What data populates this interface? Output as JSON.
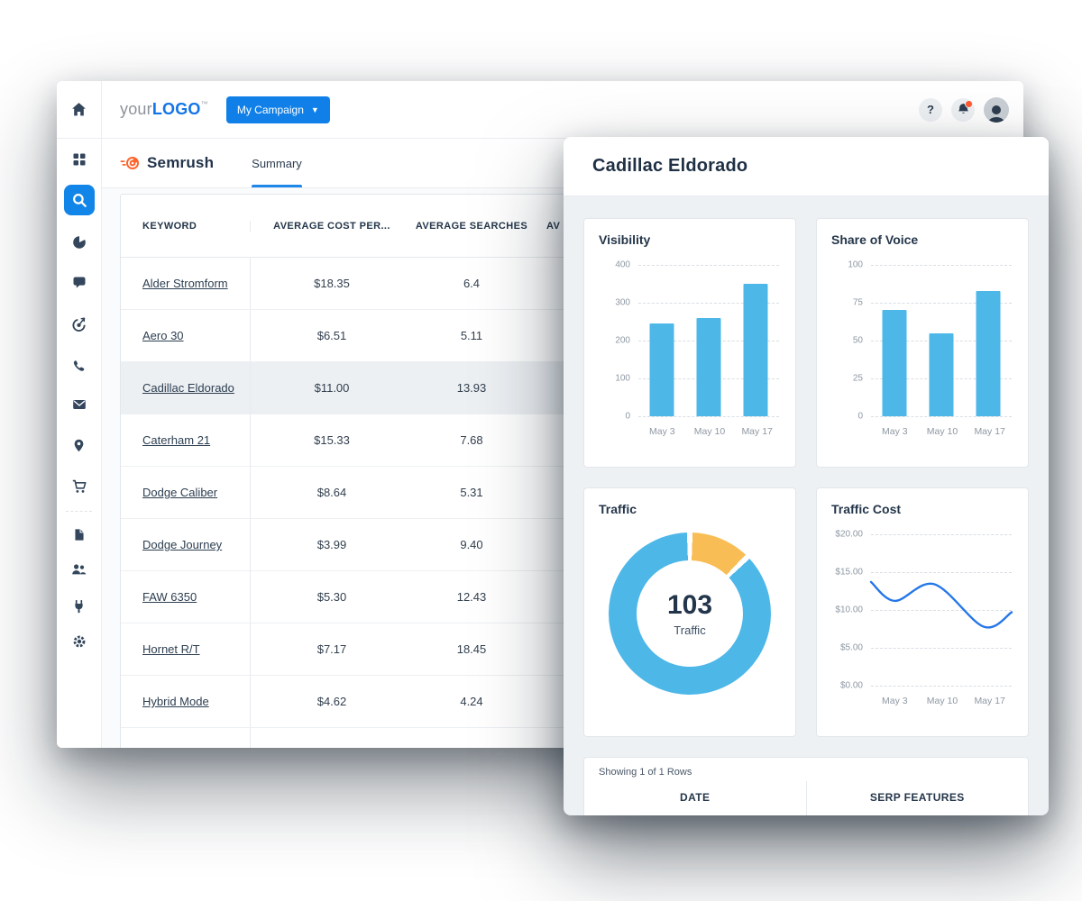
{
  "topbar": {
    "logo_prefix": "your",
    "logo_suffix": "LOGO",
    "logo_tm": "™",
    "campaign_button_label": "My Campaign",
    "help_label": "?"
  },
  "subheader": {
    "brand": "Semrush",
    "active_tab": "Summary"
  },
  "sidebar": {
    "items": [
      "home",
      "apps-grid",
      "search",
      "pie-chart",
      "chat",
      "target",
      "phone",
      "mail",
      "location",
      "cart",
      "document",
      "users",
      "integrations",
      "settings"
    ],
    "active_item": "search"
  },
  "table": {
    "columns": [
      "KEYWORD",
      "AVERAGE COST PER...",
      "AVERAGE SEARCHES",
      "AV"
    ],
    "rows": [
      {
        "keyword": "Alder Stromform",
        "cost": "$18.35",
        "searches": "6.4",
        "highlighted": false
      },
      {
        "keyword": "Aero 30",
        "cost": "$6.51",
        "searches": "5.11",
        "highlighted": false
      },
      {
        "keyword": "Cadillac Eldorado",
        "cost": "$11.00",
        "searches": "13.93",
        "highlighted": true
      },
      {
        "keyword": "Caterham 21",
        "cost": "$15.33",
        "searches": "7.68",
        "highlighted": false
      },
      {
        "keyword": "Dodge Caliber",
        "cost": "$8.64",
        "searches": "5.31",
        "highlighted": false
      },
      {
        "keyword": "Dodge Journey",
        "cost": "$3.99",
        "searches": "9.40",
        "highlighted": false
      },
      {
        "keyword": "FAW 6350",
        "cost": "$5.30",
        "searches": "12.43",
        "highlighted": false
      },
      {
        "keyword": "Hornet R/T",
        "cost": "$7.17",
        "searches": "18.45",
        "highlighted": false
      },
      {
        "keyword": "Hybrid Mode",
        "cost": "$4.62",
        "searches": "4.24",
        "highlighted": false
      }
    ]
  },
  "modal": {
    "title": "Cadillac Eldorado",
    "showing": "Showing 1 of 1 Rows",
    "bottom_columns": [
      "DATE",
      "SERP FEATURES"
    ]
  },
  "chart_data": [
    {
      "type": "bar",
      "title": "Visibility",
      "categories": [
        "May 3",
        "May 10",
        "May 17"
      ],
      "values": [
        245,
        260,
        350
      ],
      "ylim": [
        0,
        400
      ],
      "yticks": [
        "400",
        "300",
        "200",
        "100",
        "0"
      ],
      "color": "#4DB7E8",
      "grid": "dashed"
    },
    {
      "type": "bar",
      "title": "Share of Voice",
      "categories": [
        "May 3",
        "May 10",
        "May 17"
      ],
      "values": [
        70,
        55,
        83
      ],
      "ylim": [
        0,
        100
      ],
      "yticks": [
        "100",
        "75",
        "50",
        "25",
        "0"
      ],
      "color": "#4DB7E8",
      "grid": "dashed"
    },
    {
      "type": "donut",
      "title": "Traffic",
      "center_value": "103",
      "center_label": "Traffic",
      "segments": [
        {
          "name": "segment-a",
          "value": 13,
          "color": "#F9BD55"
        },
        {
          "name": "segment-b",
          "value": 90,
          "color": "#4DB7E8"
        }
      ]
    },
    {
      "type": "line",
      "title": "Traffic Cost",
      "categories": [
        "May 3",
        "May 10",
        "May 17"
      ],
      "yticks": [
        "$20.00",
        "$15.00",
        "$10.00",
        "$5.00",
        "$0.00"
      ],
      "ylim": [
        0,
        20
      ],
      "curve": [
        {
          "t": 0,
          "value": 13.7
        },
        {
          "t": 0.17,
          "value": 11.2
        },
        {
          "t": 0.45,
          "value": 13.4
        },
        {
          "t": 0.8,
          "value": 7.8
        },
        {
          "t": 1,
          "value": 9.7
        }
      ],
      "color": "#2577E8",
      "grid": "dashed"
    }
  ],
  "colors": {
    "accent_blue": "#1080E8",
    "bar_blue": "#4DB7E8",
    "line_blue": "#2577E8",
    "donut_orange": "#F9BD55",
    "navy_text": "#24364A",
    "notification_dot": "#FF5A30"
  }
}
